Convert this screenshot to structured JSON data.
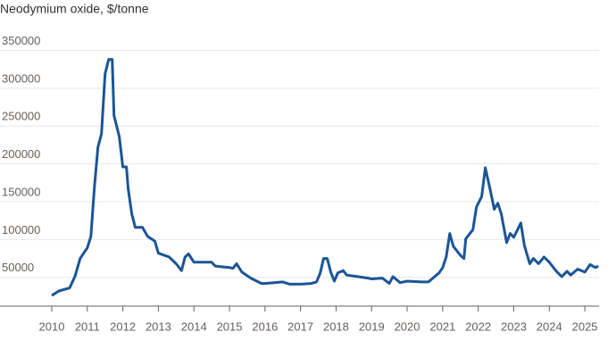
{
  "chart_data": {
    "type": "line",
    "title": "Neodymium oxide, $/tonne",
    "x": [
      2010.0,
      2010.2,
      2010.5,
      2010.65,
      2010.8,
      2011.0,
      2011.1,
      2011.2,
      2011.3,
      2011.4,
      2011.5,
      2011.6,
      2011.7,
      2011.75,
      2011.9,
      2012.0,
      2012.1,
      2012.15,
      2012.25,
      2012.35,
      2012.55,
      2012.7,
      2012.9,
      2013.0,
      2013.3,
      2013.5,
      2013.65,
      2013.75,
      2013.85,
      2014.0,
      2014.5,
      2014.6,
      2015.0,
      2015.1,
      2015.2,
      2015.35,
      2015.6,
      2015.9,
      2016.0,
      2016.5,
      2016.7,
      2017.0,
      2017.3,
      2017.45,
      2017.55,
      2017.65,
      2017.75,
      2017.85,
      2017.95,
      2018.05,
      2018.2,
      2018.3,
      2018.6,
      2018.9,
      2019.0,
      2019.3,
      2019.5,
      2019.6,
      2019.8,
      2020.0,
      2020.4,
      2020.6,
      2020.9,
      2021.0,
      2021.1,
      2021.2,
      2021.3,
      2021.5,
      2021.6,
      2021.65,
      2021.85,
      2021.95,
      2022.1,
      2022.2,
      2022.35,
      2022.45,
      2022.55,
      2022.65,
      2022.8,
      2022.9,
      2023.0,
      2023.2,
      2023.3,
      2023.45,
      2023.55,
      2023.7,
      2023.85,
      2024.0,
      2024.2,
      2024.35,
      2024.5,
      2024.6,
      2024.8,
      2025.0,
      2025.15,
      2025.3,
      2025.38
    ],
    "series": [
      {
        "name": "Neodymium oxide",
        "color": "#1b5597",
        "values": [
          26000,
          32000,
          36000,
          51000,
          75000,
          89000,
          104000,
          170000,
          222000,
          240000,
          319000,
          338000,
          338000,
          264000,
          236000,
          196000,
          196000,
          167000,
          134000,
          116000,
          116000,
          104000,
          98000,
          82000,
          77000,
          68000,
          59000,
          77000,
          81000,
          70000,
          70000,
          65000,
          63000,
          62000,
          68000,
          57000,
          49000,
          42000,
          42000,
          44000,
          41000,
          41000,
          42000,
          44000,
          55000,
          75000,
          75000,
          57000,
          45000,
          56000,
          59000,
          53000,
          51000,
          49000,
          48000,
          49000,
          42000,
          51000,
          43000,
          45000,
          44000,
          44000,
          56000,
          63000,
          77000,
          108000,
          91000,
          79000,
          75000,
          101000,
          113000,
          143000,
          157000,
          195000,
          163000,
          140000,
          148000,
          134000,
          96000,
          108000,
          103000,
          122000,
          92000,
          68000,
          75000,
          68000,
          77000,
          70000,
          58000,
          51000,
          58000,
          53000,
          61000,
          57000,
          67000,
          63000,
          65000
        ]
      }
    ],
    "xlim": [
      2010,
      2025.4
    ],
    "xticks": [
      2010,
      2011,
      2012,
      2013,
      2014,
      2015,
      2016,
      2017,
      2018,
      2019,
      2020,
      2021,
      2022,
      2023,
      2024,
      2025
    ],
    "ylim": [
      12000,
      360000
    ],
    "yticks": [
      50000,
      100000,
      150000,
      200000,
      250000,
      300000,
      350000
    ],
    "grid": true
  }
}
